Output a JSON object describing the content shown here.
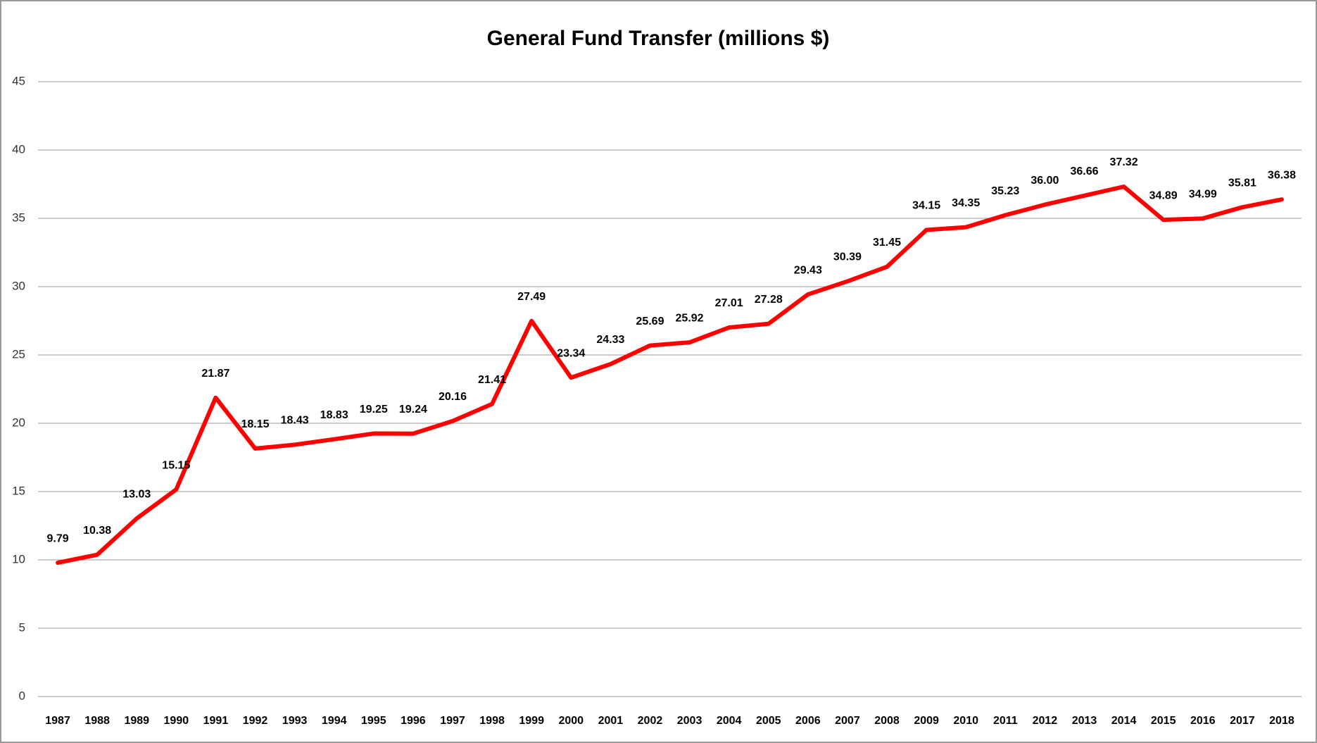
{
  "chart_data": {
    "type": "line",
    "title": "General Fund Transfer (millions $)",
    "categories": [
      "1987",
      "1988",
      "1989",
      "1990",
      "1991",
      "1992",
      "1993",
      "1994",
      "1995",
      "1996",
      "1997",
      "1998",
      "1999",
      "2000",
      "2001",
      "2002",
      "2003",
      "2004",
      "2005",
      "2006",
      "2007",
      "2008",
      "2009",
      "2010",
      "2011",
      "2012",
      "2013",
      "2014",
      "2015",
      "2016",
      "2017",
      "2018"
    ],
    "series": [
      {
        "name": "General Fund Transfer",
        "color": "#ff0000",
        "values": [
          9.79,
          10.38,
          13.03,
          15.15,
          21.87,
          18.15,
          18.43,
          18.83,
          19.25,
          19.24,
          20.16,
          21.41,
          27.49,
          23.34,
          24.33,
          25.69,
          25.92,
          27.01,
          27.28,
          29.43,
          30.39,
          31.45,
          34.15,
          34.35,
          35.23,
          36.0,
          36.66,
          37.32,
          34.89,
          34.99,
          35.81,
          36.38
        ],
        "value_labels": [
          "9.79",
          "10.38",
          "13.03",
          "15.15",
          "21.87",
          "18.15",
          "18.43",
          "18.83",
          "19.25",
          "19.24",
          "20.16",
          "21.41",
          "27.49",
          "23.34",
          "24.33",
          "25.69",
          "25.92",
          "27.01",
          "27.28",
          "29.43",
          "30.39",
          "31.45",
          "34.15",
          "34.35",
          "35.23",
          "36.00",
          "36.66",
          "37.32",
          "34.89",
          "34.99",
          "35.81",
          "36.38"
        ]
      }
    ],
    "ylim": [
      0,
      45
    ],
    "yticks": [
      0,
      5,
      10,
      15,
      20,
      25,
      30,
      35,
      40,
      45
    ],
    "grid": true
  }
}
